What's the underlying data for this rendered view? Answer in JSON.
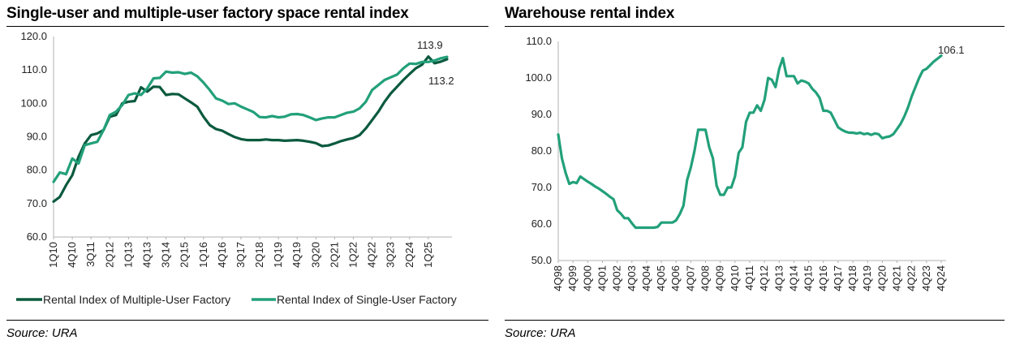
{
  "colors": {
    "dark_green": "#0b5a3e",
    "light_green": "#22a07a",
    "axis": "#b0b0b0"
  },
  "chart_data": [
    {
      "type": "line",
      "title": "Single-user and multiple-user factory space rental index",
      "source": "Source: URA",
      "ylim": [
        60,
        120
      ],
      "yticks": [
        "120.0",
        "110.0",
        "100.0",
        "90.0",
        "80.0",
        "70.0",
        "60.0"
      ],
      "xticks": [
        "1Q10",
        "4Q10",
        "3Q11",
        "2Q12",
        "1Q13",
        "4Q13",
        "3Q14",
        "2Q15",
        "1Q16",
        "4Q16",
        "3Q17",
        "2Q18",
        "1Q19",
        "4Q19",
        "3Q20",
        "2Q21",
        "1Q22",
        "4Q22",
        "3Q23",
        "2Q24",
        "1Q25"
      ],
      "x_start": "1Q10",
      "x_end": "3Q25",
      "legend_position": "bottom",
      "annotations": [
        "113.9",
        "113.2"
      ],
      "series": [
        {
          "name": "Rental Index of Multiple-User Factory",
          "color": "#0b5a3e",
          "values": [
            70.6,
            72.0,
            75.5,
            78.5,
            84.0,
            88.0,
            90.5,
            91.0,
            92.0,
            96.0,
            96.5,
            100.0,
            100.5,
            100.7,
            104.8,
            103.5,
            105.0,
            104.9,
            102.5,
            102.8,
            102.7,
            101.5,
            100.3,
            99.0,
            96.0,
            93.5,
            92.3,
            91.8,
            90.8,
            89.9,
            89.3,
            89.0,
            89.0,
            89.0,
            89.2,
            89.0,
            89.0,
            88.8,
            88.9,
            89.0,
            88.8,
            88.5,
            88.1,
            87.2,
            87.4,
            88.0,
            88.7,
            89.2,
            89.6,
            90.5,
            92.5,
            95.0,
            97.5,
            100.5,
            103.0,
            105.0,
            107.0,
            108.8,
            110.5,
            111.6,
            114.0,
            112.0,
            112.5,
            113.2
          ]
        },
        {
          "name": "Rental Index of Single-User Factory",
          "color": "#22a07a",
          "values": [
            76.5,
            79.3,
            78.8,
            83.5,
            82.0,
            87.5,
            88.0,
            88.5,
            92.0,
            96.5,
            97.5,
            99.5,
            102.5,
            103.0,
            102.5,
            104.5,
            107.5,
            107.6,
            109.5,
            109.2,
            109.3,
            108.8,
            109.2,
            108.1,
            106.2,
            104.0,
            101.5,
            100.8,
            99.8,
            100.0,
            99.0,
            98.2,
            97.4,
            95.9,
            95.8,
            96.2,
            95.8,
            96.0,
            96.7,
            96.8,
            96.5,
            95.8,
            95.0,
            95.5,
            95.8,
            95.8,
            96.5,
            97.2,
            97.5,
            98.5,
            100.5,
            104.0,
            105.5,
            107.0,
            107.8,
            108.6,
            110.5,
            111.9,
            111.8,
            112.4,
            112.4,
            112.8,
            113.5,
            113.9
          ]
        }
      ]
    },
    {
      "type": "line",
      "title": "Warehouse rental index",
      "source": "Source: URA",
      "ylim": [
        50,
        110
      ],
      "yticks": [
        "110.0",
        "100.0",
        "90.0",
        "80.0",
        "70.0",
        "60.0",
        "50.0"
      ],
      "xticks": [
        "4Q98",
        "4Q99",
        "4Q00",
        "4Q01",
        "4Q02",
        "4Q03",
        "4Q04",
        "4Q05",
        "4Q06",
        "4Q07",
        "4Q08",
        "4Q09",
        "4Q10",
        "4Q11",
        "4Q12",
        "4Q13",
        "4Q14",
        "4Q15",
        "4Q16",
        "4Q17",
        "4Q18",
        "4Q19",
        "4Q20",
        "4Q21",
        "4Q22",
        "4Q23",
        "4Q24"
      ],
      "x_start": "4Q98",
      "x_end": "2Q25",
      "annotations": [
        "106.1"
      ],
      "series": [
        {
          "name": "Warehouse rental index",
          "color": "#22a07a",
          "values": [
            84.5,
            78.0,
            74.0,
            71.0,
            71.5,
            71.2,
            73.0,
            72.3,
            71.6,
            71.0,
            70.3,
            69.7,
            69.0,
            68.3,
            67.5,
            66.8,
            63.8,
            62.8,
            61.6,
            61.6,
            60.2,
            59.0,
            59.0,
            59.0,
            59.0,
            59.0,
            59.0,
            59.2,
            60.4,
            60.4,
            60.4,
            60.4,
            61.0,
            62.7,
            65.0,
            72.0,
            75.5,
            80.0,
            85.8,
            85.8,
            85.8,
            81.0,
            78.0,
            70.5,
            68.0,
            68.0,
            70.0,
            70.0,
            73.0,
            79.5,
            81.0,
            88.0,
            90.5,
            90.5,
            92.5,
            91.0,
            94.0,
            100.0,
            99.5,
            97.5,
            102.5,
            105.4,
            100.5,
            100.5,
            100.5,
            98.5,
            99.3,
            99.0,
            98.5,
            97.0,
            96.0,
            94.5,
            91.0,
            91.0,
            90.5,
            88.5,
            86.5,
            85.8,
            85.3,
            85.0,
            85.0,
            84.8,
            85.0,
            84.6,
            84.8,
            84.4,
            84.8,
            84.6,
            83.5,
            83.8,
            84.0,
            84.6,
            86.0,
            87.5,
            89.5,
            92.0,
            95.0,
            97.5,
            100.0,
            102.0,
            102.5,
            103.5,
            104.5,
            105.3,
            106.1
          ]
        }
      ]
    }
  ]
}
